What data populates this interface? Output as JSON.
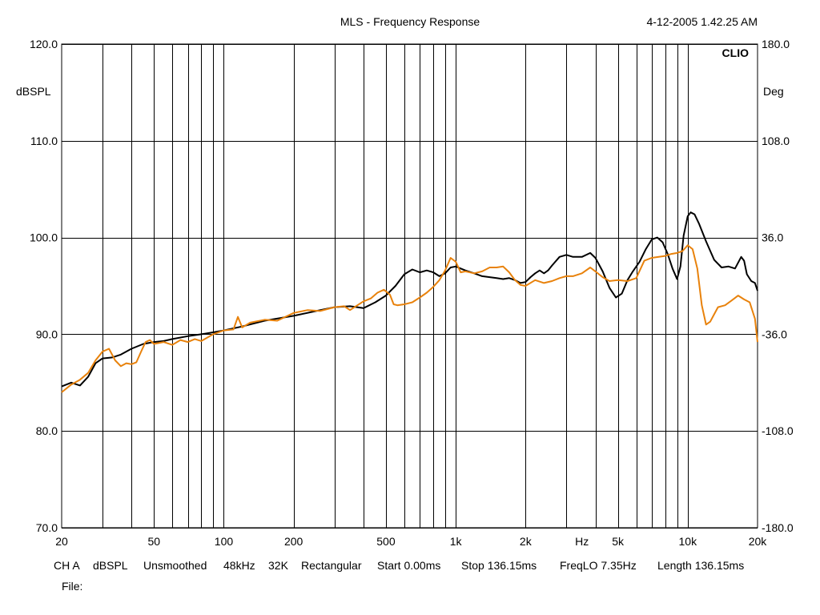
{
  "header": {
    "title": "MLS - Frequency Response",
    "timestamp": "4-12-2005 1.42.25 AM",
    "brand": "CLIO"
  },
  "footer": {
    "items": [
      "CH A",
      "dBSPL",
      "Unsmoothed",
      "48kHz",
      "32K",
      "Rectangular",
      "Start 0.00ms",
      "Stop 136.15ms",
      "FreqLO 7.35Hz",
      "Length 136.15ms"
    ],
    "file_label": "File:"
  },
  "colors": {
    "series_black": "#000000",
    "series_orange": "#e8820c",
    "grid": "#000000",
    "background": "#ffffff"
  },
  "chart_data": {
    "type": "line",
    "title": "MLS - Frequency Response",
    "x_scale": "log",
    "xlim": [
      20,
      20000
    ],
    "x_tick_labels": [
      {
        "value": 20,
        "label": "20"
      },
      {
        "value": 50,
        "label": "50"
      },
      {
        "value": 100,
        "label": "100"
      },
      {
        "value": 200,
        "label": "200"
      },
      {
        "value": 500,
        "label": "500"
      },
      {
        "value": 1000,
        "label": "1k"
      },
      {
        "value": 2000,
        "label": "2k"
      },
      {
        "value": 3500,
        "label": "Hz"
      },
      {
        "value": 5000,
        "label": "5k"
      },
      {
        "value": 10000,
        "label": "10k"
      },
      {
        "value": 20000,
        "label": "20k"
      }
    ],
    "ylabel": "dBSPL",
    "ylim": [
      70,
      120
    ],
    "y_ticks": [
      {
        "value": 120,
        "label": "120.0"
      },
      {
        "value": 110,
        "label": "110.0"
      },
      {
        "value": 100,
        "label": "100.0"
      },
      {
        "value": 90,
        "label": "90.0"
      },
      {
        "value": 80,
        "label": "80.0"
      },
      {
        "value": 70,
        "label": "70.0"
      }
    ],
    "y2label": "Deg",
    "y2lim": [
      -180,
      180
    ],
    "y2_ticks": [
      {
        "value": 180,
        "label": "180.0"
      },
      {
        "value": 108,
        "label": "108.0"
      },
      {
        "value": 36,
        "label": "36.0"
      },
      {
        "value": -36,
        "label": "-36.0"
      },
      {
        "value": -108,
        "label": "-108.0"
      },
      {
        "value": -180,
        "label": "-180.0"
      }
    ],
    "grid": true,
    "series": [
      {
        "color": "#000000",
        "points": [
          [
            20,
            84.6
          ],
          [
            22,
            85.0
          ],
          [
            24,
            84.7
          ],
          [
            26,
            85.6
          ],
          [
            28,
            87.0
          ],
          [
            30,
            87.5
          ],
          [
            33,
            87.6
          ],
          [
            36,
            87.9
          ],
          [
            40,
            88.5
          ],
          [
            45,
            89.0
          ],
          [
            50,
            89.2
          ],
          [
            55,
            89.3
          ],
          [
            60,
            89.5
          ],
          [
            70,
            89.8
          ],
          [
            80,
            90.0
          ],
          [
            90,
            90.2
          ],
          [
            100,
            90.4
          ],
          [
            120,
            90.8
          ],
          [
            150,
            91.4
          ],
          [
            200,
            91.9
          ],
          [
            250,
            92.4
          ],
          [
            300,
            92.8
          ],
          [
            350,
            92.9
          ],
          [
            400,
            92.7
          ],
          [
            450,
            93.3
          ],
          [
            500,
            94.0
          ],
          [
            550,
            95.0
          ],
          [
            600,
            96.2
          ],
          [
            650,
            96.7
          ],
          [
            700,
            96.4
          ],
          [
            750,
            96.6
          ],
          [
            800,
            96.4
          ],
          [
            850,
            96.0
          ],
          [
            900,
            96.3
          ],
          [
            950,
            96.9
          ],
          [
            1000,
            97.0
          ],
          [
            1100,
            96.6
          ],
          [
            1200,
            96.3
          ],
          [
            1300,
            96.0
          ],
          [
            1400,
            95.9
          ],
          [
            1500,
            95.8
          ],
          [
            1600,
            95.7
          ],
          [
            1700,
            95.8
          ],
          [
            1800,
            95.6
          ],
          [
            1900,
            95.3
          ],
          [
            2000,
            95.4
          ],
          [
            2100,
            95.9
          ],
          [
            2200,
            96.3
          ],
          [
            2300,
            96.6
          ],
          [
            2400,
            96.3
          ],
          [
            2500,
            96.6
          ],
          [
            2600,
            97.1
          ],
          [
            2800,
            98.0
          ],
          [
            3000,
            98.2
          ],
          [
            3200,
            98.0
          ],
          [
            3500,
            98.0
          ],
          [
            3800,
            98.4
          ],
          [
            4000,
            97.9
          ],
          [
            4300,
            96.5
          ],
          [
            4600,
            94.8
          ],
          [
            4900,
            93.8
          ],
          [
            5200,
            94.2
          ],
          [
            5500,
            95.6
          ],
          [
            5800,
            96.5
          ],
          [
            6200,
            97.5
          ],
          [
            6600,
            98.8
          ],
          [
            7000,
            99.8
          ],
          [
            7400,
            100.0
          ],
          [
            7800,
            99.5
          ],
          [
            8200,
            98.3
          ],
          [
            8600,
            96.8
          ],
          [
            9000,
            95.7
          ],
          [
            9300,
            97.0
          ],
          [
            9600,
            100.2
          ],
          [
            10000,
            102.2
          ],
          [
            10300,
            102.6
          ],
          [
            10700,
            102.4
          ],
          [
            11200,
            101.4
          ],
          [
            12000,
            99.6
          ],
          [
            13000,
            97.7
          ],
          [
            14000,
            96.9
          ],
          [
            15000,
            97.0
          ],
          [
            16000,
            96.8
          ],
          [
            17000,
            98.0
          ],
          [
            17500,
            97.6
          ],
          [
            18000,
            96.2
          ],
          [
            18800,
            95.5
          ],
          [
            19500,
            95.3
          ],
          [
            20000,
            94.5
          ]
        ]
      },
      {
        "color": "#e8820c",
        "points": [
          [
            20,
            84.0
          ],
          [
            22,
            84.8
          ],
          [
            24,
            85.3
          ],
          [
            26,
            86.0
          ],
          [
            28,
            87.3
          ],
          [
            30,
            88.2
          ],
          [
            32,
            88.5
          ],
          [
            34,
            87.3
          ],
          [
            36,
            86.7
          ],
          [
            38,
            87.0
          ],
          [
            40,
            86.9
          ],
          [
            42,
            87.1
          ],
          [
            44,
            88.2
          ],
          [
            46,
            89.2
          ],
          [
            48,
            89.4
          ],
          [
            50,
            89.0
          ],
          [
            55,
            89.2
          ],
          [
            60,
            88.9
          ],
          [
            65,
            89.4
          ],
          [
            70,
            89.2
          ],
          [
            75,
            89.5
          ],
          [
            80,
            89.3
          ],
          [
            90,
            90.0
          ],
          [
            100,
            90.4
          ],
          [
            110,
            90.5
          ],
          [
            115,
            91.8
          ],
          [
            120,
            90.7
          ],
          [
            130,
            91.2
          ],
          [
            150,
            91.5
          ],
          [
            170,
            91.4
          ],
          [
            200,
            92.2
          ],
          [
            230,
            92.5
          ],
          [
            260,
            92.4
          ],
          [
            300,
            92.8
          ],
          [
            330,
            92.9
          ],
          [
            350,
            92.5
          ],
          [
            400,
            93.4
          ],
          [
            430,
            93.7
          ],
          [
            460,
            94.3
          ],
          [
            490,
            94.6
          ],
          [
            520,
            94.1
          ],
          [
            540,
            93.1
          ],
          [
            560,
            93.0
          ],
          [
            600,
            93.1
          ],
          [
            650,
            93.3
          ],
          [
            700,
            93.8
          ],
          [
            750,
            94.3
          ],
          [
            800,
            94.9
          ],
          [
            850,
            95.6
          ],
          [
            900,
            96.6
          ],
          [
            950,
            97.9
          ],
          [
            1000,
            97.5
          ],
          [
            1050,
            96.4
          ],
          [
            1100,
            96.5
          ],
          [
            1200,
            96.3
          ],
          [
            1300,
            96.5
          ],
          [
            1400,
            96.9
          ],
          [
            1500,
            96.9
          ],
          [
            1600,
            97.0
          ],
          [
            1700,
            96.4
          ],
          [
            1800,
            95.6
          ],
          [
            1900,
            95.1
          ],
          [
            2000,
            95.0
          ],
          [
            2200,
            95.6
          ],
          [
            2400,
            95.3
          ],
          [
            2600,
            95.5
          ],
          [
            2800,
            95.8
          ],
          [
            3000,
            96.0
          ],
          [
            3200,
            96.0
          ],
          [
            3500,
            96.3
          ],
          [
            3800,
            96.9
          ],
          [
            4000,
            96.5
          ],
          [
            4300,
            95.9
          ],
          [
            4600,
            95.5
          ],
          [
            5000,
            95.6
          ],
          [
            5500,
            95.5
          ],
          [
            6000,
            95.8
          ],
          [
            6500,
            97.6
          ],
          [
            7000,
            97.9
          ],
          [
            7500,
            98.0
          ],
          [
            8000,
            98.1
          ],
          [
            8500,
            98.3
          ],
          [
            9000,
            98.4
          ],
          [
            9500,
            98.6
          ],
          [
            10000,
            99.2
          ],
          [
            10500,
            98.8
          ],
          [
            11000,
            96.8
          ],
          [
            11500,
            93.0
          ],
          [
            12000,
            91.0
          ],
          [
            12500,
            91.3
          ],
          [
            13500,
            92.8
          ],
          [
            14500,
            93.0
          ],
          [
            15500,
            93.5
          ],
          [
            16500,
            94.0
          ],
          [
            17500,
            93.6
          ],
          [
            18500,
            93.3
          ],
          [
            19500,
            91.6
          ],
          [
            20000,
            89.2
          ]
        ]
      }
    ]
  }
}
